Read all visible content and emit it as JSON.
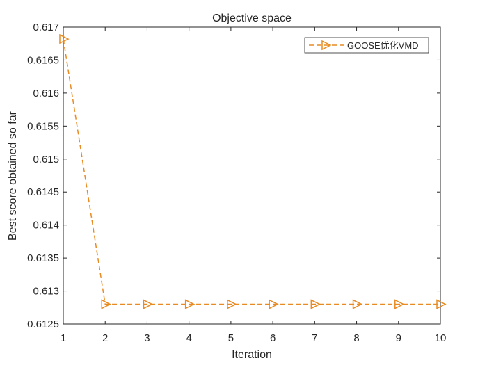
{
  "chart_data": {
    "type": "line",
    "title": "Objective space",
    "xlabel": "Iteration",
    "ylabel": "Best score obtained so far",
    "xlim": [
      1,
      10
    ],
    "ylim": [
      0.6125,
      0.617
    ],
    "xticks": [
      1,
      2,
      3,
      4,
      5,
      6,
      7,
      8,
      9,
      10
    ],
    "xtick_labels": [
      "1",
      "2",
      "3",
      "4",
      "5",
      "6",
      "7",
      "8",
      "9",
      "10"
    ],
    "yticks": [
      0.6125,
      0.613,
      0.6135,
      0.614,
      0.6145,
      0.615,
      0.6155,
      0.616,
      0.6165,
      0.617
    ],
    "ytick_labels": [
      "0.6125",
      "0.613",
      "0.6135",
      "0.614",
      "0.6145",
      "0.615",
      "0.6155",
      "0.616",
      "0.6165",
      "0.617"
    ],
    "grid": false,
    "legend_position": "top-right",
    "series": [
      {
        "name": "GOOSE优化VMD",
        "color": "#E98B22",
        "line_style": "dashed",
        "marker": "triangle-right-open",
        "x": [
          1,
          2,
          3,
          4,
          5,
          6,
          7,
          8,
          9,
          10
        ],
        "y": [
          0.61682,
          0.6128,
          0.6128,
          0.6128,
          0.6128,
          0.6128,
          0.6128,
          0.6128,
          0.6128,
          0.6128
        ]
      }
    ]
  }
}
